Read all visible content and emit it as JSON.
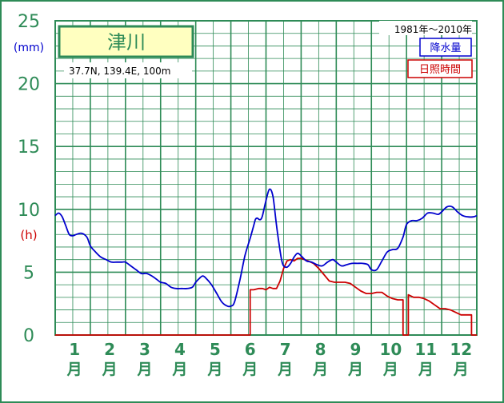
{
  "chart_data": {
    "type": "line",
    "title": "津川",
    "location": "37.7N,  139.4E,  100m",
    "period": "1981年〜2010年",
    "unit_precip": "(mm)",
    "unit_sun": "(h)",
    "months": [
      "1",
      "2",
      "3",
      "4",
      "5",
      "6",
      "7",
      "8",
      "9",
      "10",
      "11",
      "12"
    ],
    "month_suffix": "月",
    "y_ticks": [
      "0",
      "5",
      "10",
      "15",
      "20",
      "25"
    ],
    "ylim": [
      0,
      25
    ],
    "xlim": [
      0,
      12
    ],
    "grid": true,
    "legend_position": "top-right",
    "colors": {
      "frame": "#2e8b57",
      "grid": "#2e8b57",
      "precip": "#0000cd",
      "sun": "#cc0000",
      "title_bg": "#ffffc0",
      "precip_unit": "#0000cd",
      "sun_unit": "#cc0000"
    },
    "series": [
      {
        "name": "降水量",
        "color": "#0000cd",
        "x": [
          0,
          0.1,
          0.2,
          0.3,
          0.4,
          0.5,
          0.6,
          0.75,
          0.9,
          1.0,
          1.15,
          1.3,
          1.45,
          1.6,
          1.75,
          1.9,
          2.0,
          2.15,
          2.3,
          2.45,
          2.6,
          2.75,
          2.9,
          3.0,
          3.15,
          3.3,
          3.45,
          3.6,
          3.75,
          3.9,
          4.0,
          4.1,
          4.2,
          4.3,
          4.45,
          4.6,
          4.75,
          4.9,
          5.0,
          5.1,
          5.25,
          5.4,
          5.55,
          5.65,
          5.7,
          5.75,
          5.8,
          5.85,
          5.9,
          6.0,
          6.1,
          6.2,
          6.3,
          6.4,
          6.45,
          6.5,
          6.6,
          6.7,
          6.8,
          6.9,
          7.0,
          7.15,
          7.3,
          7.45,
          7.6,
          7.75,
          7.9,
          8.0,
          8.15,
          8.3,
          8.45,
          8.6,
          8.75,
          8.9,
          9.0,
          9.15,
          9.3,
          9.45,
          9.6,
          9.75,
          9.9,
          10.0,
          10.15,
          10.3,
          10.45,
          10.6,
          10.75,
          10.9,
          11.0,
          11.15,
          11.3,
          11.45,
          11.6,
          11.75,
          11.9,
          12.0
        ],
        "values": [
          9.5,
          9.7,
          9.4,
          8.7,
          8.0,
          7.9,
          8.0,
          8.1,
          7.8,
          7.1,
          6.6,
          6.2,
          6.0,
          5.8,
          5.8,
          5.8,
          5.8,
          5.5,
          5.2,
          4.9,
          4.9,
          4.7,
          4.4,
          4.2,
          4.1,
          3.8,
          3.7,
          3.7,
          3.7,
          3.8,
          4.2,
          4.5,
          4.7,
          4.5,
          4.0,
          3.3,
          2.6,
          2.3,
          2.3,
          2.6,
          4.3,
          6.3,
          7.7,
          8.7,
          9.2,
          9.3,
          9.2,
          9.2,
          9.5,
          10.7,
          11.6,
          11.0,
          8.7,
          6.7,
          5.9,
          5.5,
          5.4,
          5.7,
          6.2,
          6.5,
          6.3,
          5.9,
          5.8,
          5.6,
          5.5,
          5.8,
          6.0,
          5.8,
          5.5,
          5.6,
          5.7,
          5.7,
          5.7,
          5.6,
          5.2,
          5.2,
          5.9,
          6.6,
          6.8,
          6.9,
          7.8,
          8.8,
          9.1,
          9.1,
          9.3,
          9.7,
          9.7,
          9.6,
          9.8,
          10.2,
          10.2,
          9.8,
          9.5,
          9.4,
          9.4,
          9.5
        ]
      },
      {
        "name": "日照時間",
        "color": "#cc0000",
        "x": [
          0,
          5.55,
          5.55,
          5.65,
          5.8,
          5.9,
          6.0,
          6.1,
          6.2,
          6.3,
          6.4,
          6.5,
          6.6,
          6.7,
          6.8,
          6.9,
          7.0,
          7.2,
          7.35,
          7.5,
          7.65,
          7.8,
          7.95,
          8.1,
          8.25,
          8.4,
          8.55,
          8.7,
          8.85,
          9.0,
          9.15,
          9.3,
          9.45,
          9.6,
          9.75,
          9.9,
          9.9,
          10.05,
          10.05,
          10.2,
          10.35,
          10.5,
          10.65,
          10.8,
          10.95,
          11.1,
          11.25,
          11.4,
          11.55,
          11.7,
          11.85,
          11.85,
          12.0
        ],
        "values": [
          0,
          0,
          3.6,
          3.6,
          3.7,
          3.7,
          3.6,
          3.8,
          3.7,
          3.7,
          4.3,
          5.3,
          5.9,
          6.0,
          5.9,
          6.1,
          6.1,
          5.9,
          5.7,
          5.3,
          4.8,
          4.3,
          4.2,
          4.2,
          4.2,
          4.1,
          3.8,
          3.5,
          3.3,
          3.3,
          3.4,
          3.4,
          3.1,
          2.9,
          2.8,
          2.8,
          0,
          0,
          3.2,
          3.0,
          3.0,
          2.9,
          2.7,
          2.4,
          2.1,
          2.1,
          2.0,
          1.8,
          1.6,
          1.6,
          1.6,
          0,
          0
        ]
      }
    ]
  }
}
